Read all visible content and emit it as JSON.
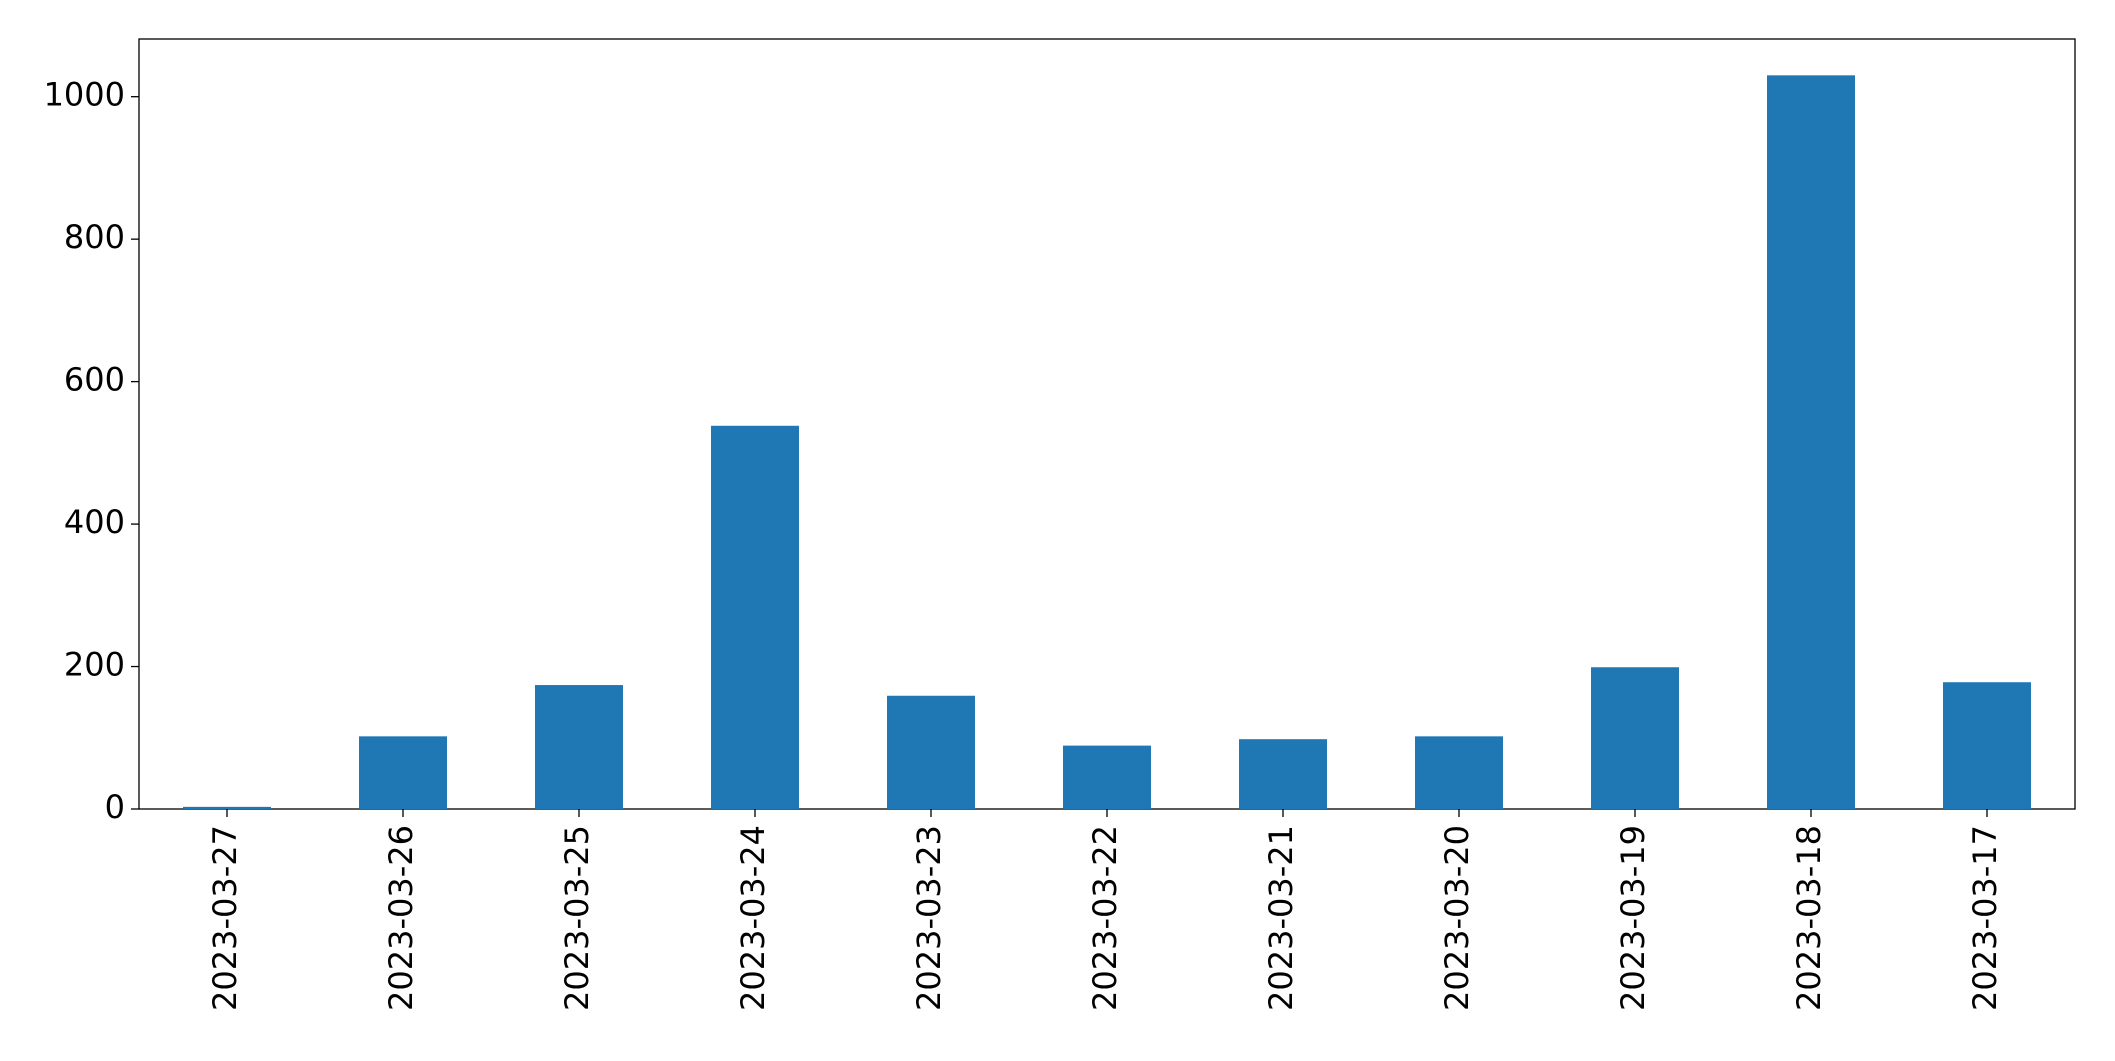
{
  "chart_data": {
    "type": "bar",
    "categories": [
      "2023-03-27",
      "2023-03-26",
      "2023-03-25",
      "2023-03-24",
      "2023-03-23",
      "2023-03-22",
      "2023-03-21",
      "2023-03-20",
      "2023-03-19",
      "2023-03-18",
      "2023-03-17"
    ],
    "values": [
      3,
      102,
      174,
      538,
      159,
      89,
      98,
      102,
      199,
      1030,
      178
    ],
    "color": "#1f77b4",
    "ylim": [
      0,
      1081
    ],
    "yticks": [
      0,
      200,
      400,
      600,
      800,
      1000
    ],
    "grid": false
  }
}
